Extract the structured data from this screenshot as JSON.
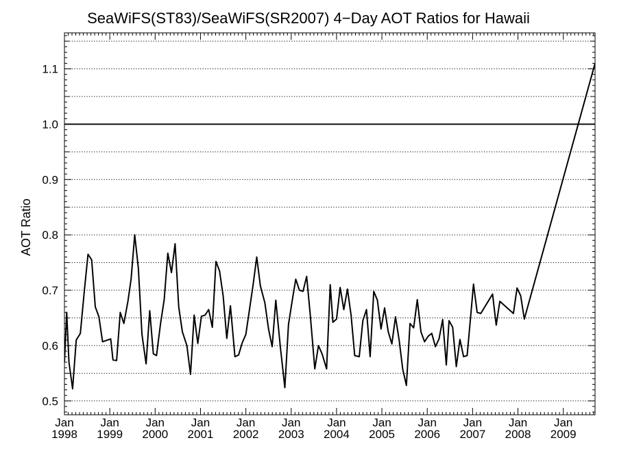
{
  "chart_data": {
    "type": "line",
    "title": "SeaWiFS(ST83)/SeaWiFS(SR2007) 4−Day AOT Ratios for Hawaii",
    "xlabel": "",
    "ylabel": "AOT Ratio",
    "xlim": [
      1998.0,
      2009.7
    ],
    "ylim": [
      0.475,
      1.165
    ],
    "grid": true,
    "y_ticks": [
      0.5,
      0.6,
      0.7,
      0.8,
      0.9,
      1.0,
      1.1
    ],
    "y_tick_labels": [
      "0.5",
      "0.6",
      "0.7",
      "0.8",
      "0.9",
      "1.0",
      "1.1"
    ],
    "y_gridlines": [
      0.5,
      0.55,
      0.6,
      0.65,
      0.7,
      0.75,
      0.8,
      0.85,
      0.9,
      0.95,
      1.05,
      1.1,
      1.15
    ],
    "reference_line": 1.0,
    "x_ticks": [
      {
        "x": 1998,
        "month": "Jan",
        "year": "1998"
      },
      {
        "x": 1999,
        "month": "Jan",
        "year": "1999"
      },
      {
        "x": 2000,
        "month": "Jan",
        "year": "2000"
      },
      {
        "x": 2001,
        "month": "Jan",
        "year": "2001"
      },
      {
        "x": 2002,
        "month": "Jan",
        "year": "2002"
      },
      {
        "x": 2003,
        "month": "Jan",
        "year": "2003"
      },
      {
        "x": 2004,
        "month": "Jan",
        "year": "2004"
      },
      {
        "x": 2005,
        "month": "Jan",
        "year": "2005"
      },
      {
        "x": 2006,
        "month": "Jan",
        "year": "2006"
      },
      {
        "x": 2007,
        "month": "Jan",
        "year": "2007"
      },
      {
        "x": 2008,
        "month": "Jan",
        "year": "2008"
      },
      {
        "x": 2009,
        "month": "Jan",
        "year": "2009"
      }
    ],
    "series": [
      {
        "color": "#000000",
        "points": [
          [
            1998.0,
            0.57
          ],
          [
            1998.05,
            0.66
          ],
          [
            1998.1,
            0.57
          ],
          [
            1998.18,
            0.522
          ],
          [
            1998.26,
            0.61
          ],
          [
            1998.35,
            0.622
          ],
          [
            1998.44,
            0.7
          ],
          [
            1998.52,
            0.765
          ],
          [
            1998.6,
            0.755
          ],
          [
            1998.68,
            0.67
          ],
          [
            1998.76,
            0.652
          ],
          [
            1998.84,
            0.607
          ],
          [
            1999.02,
            0.612
          ],
          [
            1999.07,
            0.574
          ],
          [
            1999.15,
            0.573
          ],
          [
            1999.23,
            0.66
          ],
          [
            1999.31,
            0.64
          ],
          [
            1999.4,
            0.68
          ],
          [
            1999.47,
            0.72
          ],
          [
            1999.55,
            0.8
          ],
          [
            1999.63,
            0.74
          ],
          [
            1999.71,
            0.62
          ],
          [
            1999.8,
            0.567
          ],
          [
            1999.88,
            0.663
          ],
          [
            1999.96,
            0.585
          ],
          [
            2000.03,
            0.582
          ],
          [
            2000.12,
            0.64
          ],
          [
            2000.2,
            0.683
          ],
          [
            2000.28,
            0.767
          ],
          [
            2000.36,
            0.732
          ],
          [
            2000.44,
            0.784
          ],
          [
            2000.52,
            0.67
          ],
          [
            2000.6,
            0.625
          ],
          [
            2000.7,
            0.6
          ],
          [
            2000.78,
            0.548
          ],
          [
            2000.86,
            0.655
          ],
          [
            2000.94,
            0.604
          ],
          [
            2001.02,
            0.653
          ],
          [
            2001.1,
            0.655
          ],
          [
            2001.18,
            0.665
          ],
          [
            2001.26,
            0.633
          ],
          [
            2001.34,
            0.752
          ],
          [
            2001.42,
            0.735
          ],
          [
            2001.5,
            0.69
          ],
          [
            2001.58,
            0.613
          ],
          [
            2001.66,
            0.672
          ],
          [
            2001.76,
            0.58
          ],
          [
            2001.84,
            0.583
          ],
          [
            2001.92,
            0.605
          ],
          [
            2002.0,
            0.62
          ],
          [
            2002.08,
            0.665
          ],
          [
            2002.16,
            0.71
          ],
          [
            2002.24,
            0.76
          ],
          [
            2002.32,
            0.708
          ],
          [
            2002.42,
            0.677
          ],
          [
            2002.5,
            0.63
          ],
          [
            2002.58,
            0.598
          ],
          [
            2002.66,
            0.682
          ],
          [
            2002.76,
            0.598
          ],
          [
            2002.86,
            0.524
          ],
          [
            2002.94,
            0.638
          ],
          [
            2003.02,
            0.68
          ],
          [
            2003.1,
            0.72
          ],
          [
            2003.18,
            0.7
          ],
          [
            2003.26,
            0.698
          ],
          [
            2003.34,
            0.725
          ],
          [
            2003.42,
            0.655
          ],
          [
            2003.52,
            0.558
          ],
          [
            2003.6,
            0.6
          ],
          [
            2003.68,
            0.585
          ],
          [
            2003.78,
            0.558
          ],
          [
            2003.86,
            0.71
          ],
          [
            2003.92,
            0.642
          ],
          [
            2004.0,
            0.648
          ],
          [
            2004.08,
            0.705
          ],
          [
            2004.16,
            0.665
          ],
          [
            2004.24,
            0.702
          ],
          [
            2004.32,
            0.655
          ],
          [
            2004.4,
            0.582
          ],
          [
            2004.5,
            0.58
          ],
          [
            2004.58,
            0.645
          ],
          [
            2004.66,
            0.665
          ],
          [
            2004.74,
            0.58
          ],
          [
            2004.82,
            0.698
          ],
          [
            2004.9,
            0.682
          ],
          [
            2004.98,
            0.63
          ],
          [
            2005.06,
            0.668
          ],
          [
            2005.14,
            0.625
          ],
          [
            2005.22,
            0.603
          ],
          [
            2005.3,
            0.652
          ],
          [
            2005.38,
            0.61
          ],
          [
            2005.46,
            0.557
          ],
          [
            2005.54,
            0.528
          ],
          [
            2005.62,
            0.64
          ],
          [
            2005.7,
            0.632
          ],
          [
            2005.78,
            0.683
          ],
          [
            2005.86,
            0.625
          ],
          [
            2005.94,
            0.607
          ],
          [
            2006.02,
            0.617
          ],
          [
            2006.1,
            0.622
          ],
          [
            2006.18,
            0.598
          ],
          [
            2006.26,
            0.612
          ],
          [
            2006.34,
            0.647
          ],
          [
            2006.42,
            0.565
          ],
          [
            2006.48,
            0.645
          ],
          [
            2006.56,
            0.633
          ],
          [
            2006.64,
            0.562
          ],
          [
            2006.72,
            0.611
          ],
          [
            2006.8,
            0.58
          ],
          [
            2006.88,
            0.582
          ],
          [
            2006.96,
            0.655
          ],
          [
            2007.02,
            0.711
          ],
          [
            2007.1,
            0.66
          ],
          [
            2007.18,
            0.658
          ],
          [
            2007.44,
            0.693
          ],
          [
            2007.52,
            0.637
          ],
          [
            2007.6,
            0.68
          ],
          [
            2007.9,
            0.658
          ],
          [
            2007.98,
            0.704
          ],
          [
            2008.06,
            0.69
          ],
          [
            2008.14,
            0.648
          ],
          [
            2009.7,
            1.11
          ]
        ]
      }
    ]
  }
}
